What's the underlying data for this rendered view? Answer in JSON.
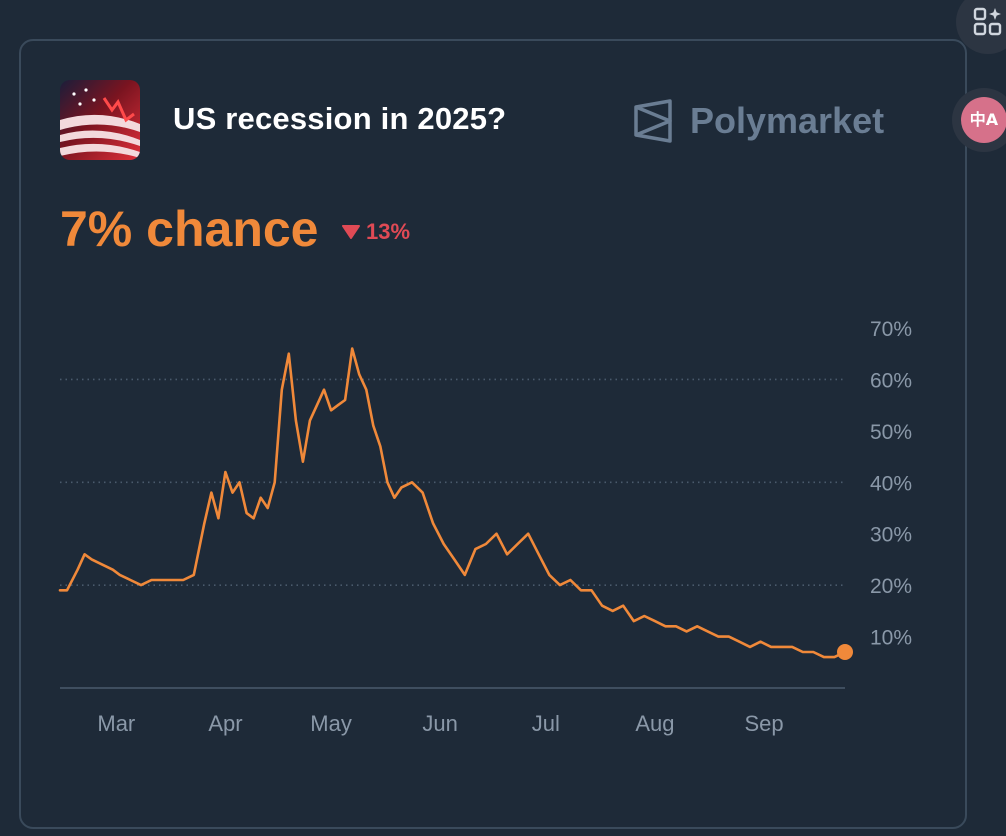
{
  "market": {
    "title": "US recession in 2025?",
    "brand": "Polymarket",
    "chance_label": "7% chance",
    "change": "13%",
    "change_direction": "down"
  },
  "extensions": {
    "apps_icon": "grid-sparkle-icon",
    "translate_icon": "translate-icon",
    "translate_glyph": "中A"
  },
  "colors": {
    "background": "#1e2a38",
    "accent": "#f0893a",
    "negative": "#e04a55",
    "brand": "#6a7d93",
    "text": "#ffffff",
    "axis_text": "#8a98a8"
  },
  "chart_data": {
    "type": "line",
    "title": "",
    "xlabel": "",
    "ylabel": "",
    "x_ticks": [
      "Mar",
      "Apr",
      "May",
      "Jun",
      "Jul",
      "Aug",
      "Sep"
    ],
    "y_ticks": [
      "70%",
      "60%",
      "50%",
      "40%",
      "30%",
      "20%",
      "10%"
    ],
    "ylim": [
      0,
      70
    ],
    "xlim": [
      "2025-02-13",
      "2025-09-24"
    ],
    "grid": "dotted horizontal at 20%, 40%, 60%",
    "series": [
      {
        "name": "",
        "x": [
          "2025-02-13",
          "2025-02-15",
          "2025-02-18",
          "2025-02-20",
          "2025-02-22",
          "2025-02-25",
          "2025-02-28",
          "2025-03-02",
          "2025-03-05",
          "2025-03-08",
          "2025-03-11",
          "2025-03-14",
          "2025-03-17",
          "2025-03-20",
          "2025-03-23",
          "2025-03-26",
          "2025-03-28",
          "2025-03-30",
          "2025-04-01",
          "2025-04-03",
          "2025-04-05",
          "2025-04-07",
          "2025-04-09",
          "2025-04-11",
          "2025-04-13",
          "2025-04-15",
          "2025-04-17",
          "2025-04-19",
          "2025-04-21",
          "2025-04-23",
          "2025-04-25",
          "2025-04-27",
          "2025-04-29",
          "2025-05-01",
          "2025-05-03",
          "2025-05-05",
          "2025-05-07",
          "2025-05-09",
          "2025-05-11",
          "2025-05-13",
          "2025-05-15",
          "2025-05-17",
          "2025-05-19",
          "2025-05-21",
          "2025-05-24",
          "2025-05-27",
          "2025-05-30",
          "2025-06-02",
          "2025-06-05",
          "2025-06-08",
          "2025-06-11",
          "2025-06-14",
          "2025-06-17",
          "2025-06-20",
          "2025-06-23",
          "2025-06-26",
          "2025-06-29",
          "2025-07-02",
          "2025-07-05",
          "2025-07-08",
          "2025-07-11",
          "2025-07-14",
          "2025-07-17",
          "2025-07-20",
          "2025-07-23",
          "2025-07-26",
          "2025-07-29",
          "2025-08-01",
          "2025-08-04",
          "2025-08-07",
          "2025-08-10",
          "2025-08-13",
          "2025-08-16",
          "2025-08-19",
          "2025-08-22",
          "2025-08-25",
          "2025-08-28",
          "2025-08-31",
          "2025-09-03",
          "2025-09-06",
          "2025-09-09",
          "2025-09-12",
          "2025-09-15",
          "2025-09-18",
          "2025-09-21",
          "2025-09-24"
        ],
        "y": [
          19,
          19,
          23,
          26,
          25,
          24,
          23,
          22,
          21,
          20,
          21,
          21,
          21,
          21,
          22,
          32,
          38,
          33,
          42,
          38,
          40,
          34,
          33,
          37,
          35,
          40,
          58,
          65,
          52,
          44,
          52,
          55,
          58,
          54,
          55,
          56,
          66,
          61,
          58,
          51,
          47,
          40,
          37,
          39,
          40,
          38,
          32,
          28,
          25,
          22,
          27,
          28,
          30,
          26,
          28,
          30,
          26,
          22,
          20,
          21,
          19,
          19,
          16,
          15,
          16,
          13,
          14,
          13,
          12,
          12,
          11,
          12,
          11,
          10,
          10,
          9,
          8,
          9,
          8,
          8,
          8,
          7,
          7,
          6,
          6,
          7
        ]
      }
    ]
  }
}
